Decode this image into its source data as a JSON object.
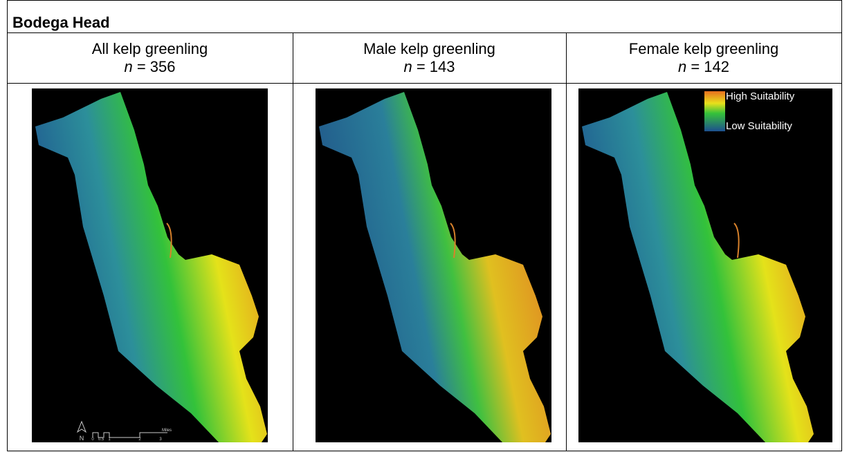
{
  "title": "Bodega Head",
  "columns": [
    {
      "label": "All kelp greenling",
      "n_symbol": "n",
      "n_text": "= 356"
    },
    {
      "label": "Male kelp greenling",
      "n_symbol": "n",
      "n_text": "= 143"
    },
    {
      "label": "Female kelp greenling",
      "n_symbol": "n",
      "n_text": "= 142"
    }
  ],
  "legend": {
    "high": "High Suitability",
    "low": "Low Suitability"
  },
  "scale_bar": {
    "north": "N",
    "labels": [
      "0",
      "0.5",
      "1",
      "2",
      "3"
    ],
    "unit": "Miles"
  }
}
